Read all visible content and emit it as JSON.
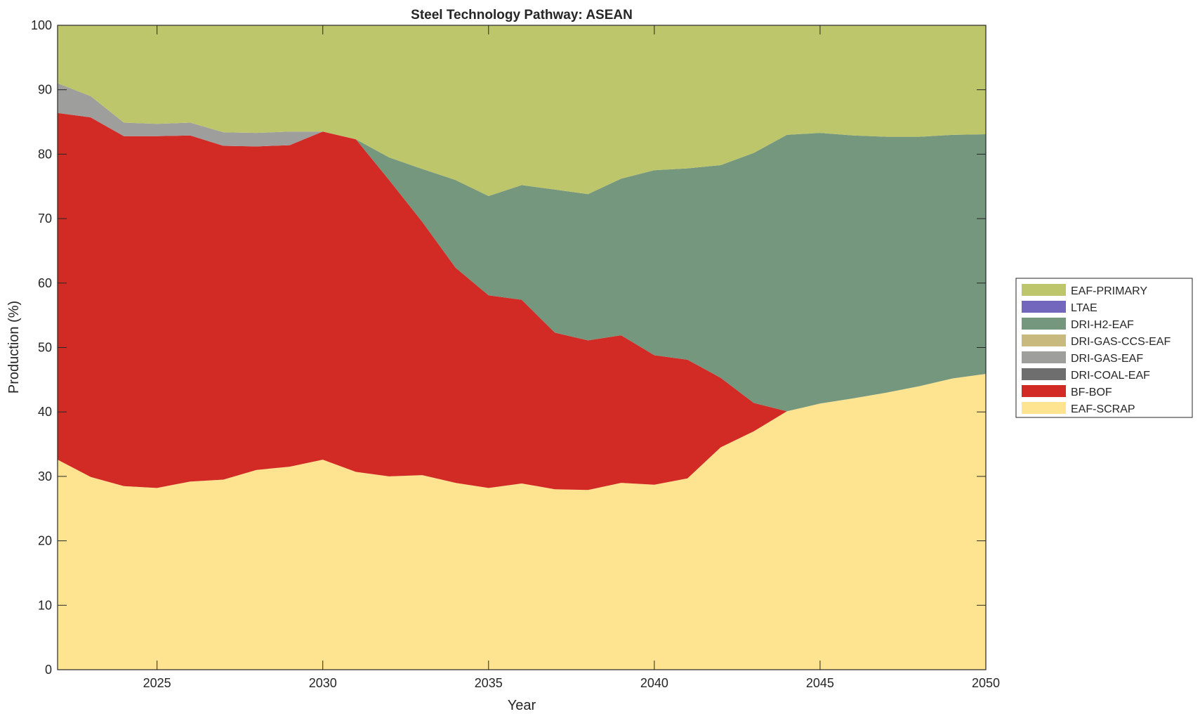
{
  "chart_data": {
    "type": "area",
    "stacked": true,
    "title": "Steel Technology Pathway: ASEAN",
    "xlabel": "Year",
    "ylabel": "Production (%)",
    "xlim": [
      2022,
      2050
    ],
    "ylim": [
      0,
      100
    ],
    "xticks": [
      2025,
      2030,
      2035,
      2040,
      2045,
      2050
    ],
    "yticks": [
      0,
      10,
      20,
      30,
      40,
      50,
      60,
      70,
      80,
      90,
      100
    ],
    "grid": false,
    "legend_placement": "right-outside",
    "x": [
      2022,
      2023,
      2024,
      2025,
      2026,
      2027,
      2028,
      2029,
      2030,
      2031,
      2032,
      2033,
      2034,
      2035,
      2036,
      2037,
      2038,
      2039,
      2040,
      2041,
      2042,
      2043,
      2044,
      2045,
      2046,
      2047,
      2048,
      2049,
      2050
    ],
    "series": [
      {
        "name": "EAF-SCRAP",
        "color": "#FEE391",
        "values": [
          32.6,
          29.9,
          28.5,
          28.2,
          29.2,
          29.5,
          31.0,
          31.5,
          32.6,
          30.7,
          30.0,
          30.2,
          29.0,
          28.2,
          28.9,
          28.0,
          27.9,
          29.0,
          28.7,
          29.7,
          34.5,
          37.0,
          40.1,
          41.3,
          42.1,
          43.0,
          44.0,
          45.2,
          45.9
        ]
      },
      {
        "name": "BF-BOF",
        "color": "#D22A24",
        "values": [
          53.8,
          55.8,
          54.3,
          54.6,
          53.7,
          51.8,
          50.2,
          49.9,
          50.9,
          51.6,
          46.0,
          39.3,
          33.4,
          29.9,
          28.5,
          24.3,
          23.2,
          22.9,
          20.1,
          18.4,
          10.8,
          4.4,
          0,
          0,
          0,
          0,
          0,
          0,
          0
        ]
      },
      {
        "name": "DRI-COAL-EAF",
        "color": "#6E6E6E",
        "values": [
          0,
          0,
          0,
          0,
          0,
          0,
          0,
          0,
          0,
          0,
          0,
          0,
          0,
          0,
          0,
          0,
          0,
          0,
          0,
          0,
          0,
          0,
          0,
          0,
          0,
          0,
          0,
          0,
          0
        ]
      },
      {
        "name": "DRI-GAS-EAF",
        "color": "#9E9E9C",
        "values": [
          4.6,
          3.3,
          2.1,
          1.9,
          2.0,
          2.1,
          2.1,
          2.1,
          0,
          0,
          0,
          0,
          0,
          0,
          0,
          0,
          0,
          0,
          0,
          0,
          0,
          0,
          0,
          0,
          0,
          0,
          0,
          0,
          0
        ]
      },
      {
        "name": "DRI-GAS-CCS-EAF",
        "color": "#C8BA7E",
        "values": [
          0,
          0,
          0,
          0,
          0,
          0,
          0,
          0,
          0,
          0,
          0,
          0,
          0,
          0,
          0,
          0,
          0,
          0,
          0,
          0,
          0,
          0,
          0,
          0,
          0,
          0,
          0,
          0,
          0
        ]
      },
      {
        "name": "DRI-H2-EAF",
        "color": "#74977D",
        "values": [
          0,
          0,
          0,
          0,
          0,
          0,
          0,
          0,
          0,
          0,
          3.5,
          8.2,
          13.6,
          15.4,
          17.8,
          22.2,
          22.7,
          24.3,
          28.7,
          29.7,
          33.0,
          38.8,
          42.9,
          42.0,
          40.8,
          39.7,
          38.7,
          37.8,
          37.2
        ]
      },
      {
        "name": "LTAE",
        "color": "#7366BD",
        "values": [
          0,
          0,
          0,
          0,
          0,
          0,
          0,
          0,
          0,
          0,
          0,
          0,
          0,
          0,
          0,
          0,
          0,
          0,
          0,
          0,
          0,
          0,
          0,
          0,
          0,
          0,
          0,
          0,
          0
        ]
      },
      {
        "name": "EAF-PRIMARY",
        "color": "#BDC66B",
        "values": [
          9.0,
          11.0,
          15.1,
          15.3,
          15.1,
          16.6,
          16.7,
          16.5,
          16.5,
          17.7,
          20.5,
          22.3,
          24.0,
          26.5,
          24.8,
          25.5,
          26.2,
          23.8,
          22.5,
          22.2,
          21.7,
          19.8,
          17.0,
          16.7,
          17.1,
          17.3,
          17.3,
          17.0,
          16.9
        ]
      }
    ],
    "legend": [
      "EAF-PRIMARY",
      "LTAE",
      "DRI-H2-EAF",
      "DRI-GAS-CCS-EAF",
      "DRI-GAS-EAF",
      "DRI-COAL-EAF",
      "BF-BOF",
      "EAF-SCRAP"
    ]
  }
}
